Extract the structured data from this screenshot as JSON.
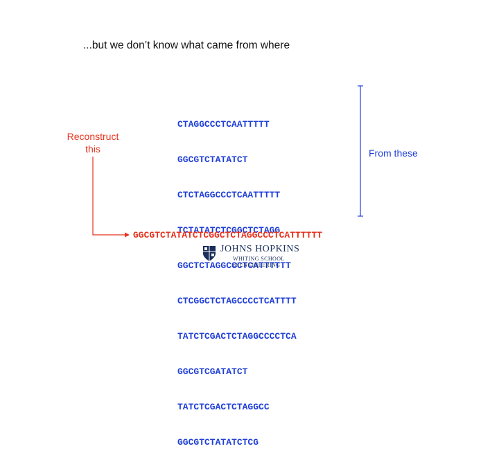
{
  "headline": "...but we don’t know what came from where",
  "reads": [
    "CTAGGCCCTCAATTTTT",
    "GGCGTCTATATCT",
    "CTCTAGGCCCTCAATTTTT",
    "TCTATATCTCGGCTCTAGG",
    "GGCTCTAGGCCCTCATTTTTT",
    "CTCGGCTCTAGCCCCTCATTTT",
    "TATCTCGACTCTAGGCCCCTCA",
    "GGCGTCGATATCT",
    "TATCTCGACTCTAGGCC",
    "GGCGTCTATATCTCG"
  ],
  "reconstruct_label": [
    "Reconstruct",
    "this"
  ],
  "from_these_label": "From these",
  "genome": "GGCGTCTATATCTCGGCTCTAGGCCCTCATTTTTT",
  "logo": {
    "name": "JOHNS HOPKINS",
    "school": "WHITING SCHOOL",
    "engineering": "of ENGINEERING"
  },
  "colors": {
    "reads": "#1f3fd8",
    "reconstruct": "#e8311d",
    "from_these": "#1f3fd8",
    "logo": "#1a2f5a"
  }
}
